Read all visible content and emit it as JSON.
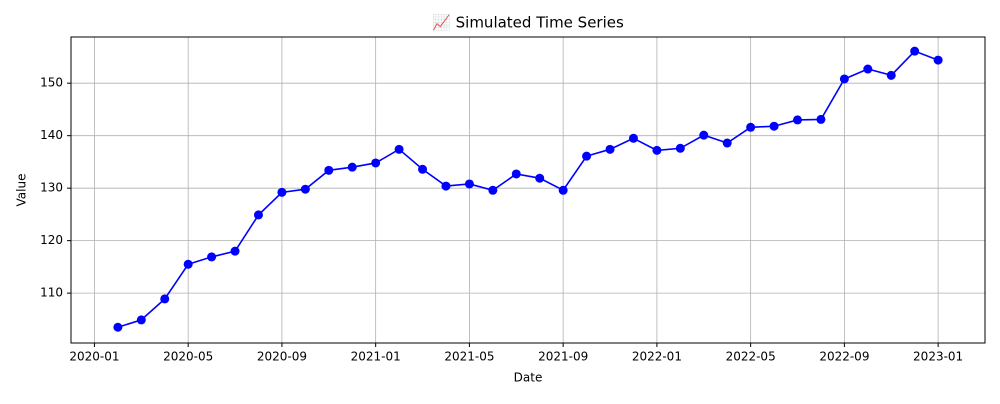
{
  "chart_data": {
    "type": "line",
    "title": "📈 Simulated Time Series",
    "x_label": "Date",
    "y_label": "Value",
    "x": [
      "2020-02",
      "2020-03",
      "2020-04",
      "2020-05",
      "2020-06",
      "2020-07",
      "2020-08",
      "2020-09",
      "2020-10",
      "2020-11",
      "2020-12",
      "2021-01",
      "2021-02",
      "2021-03",
      "2021-04",
      "2021-05",
      "2021-06",
      "2021-07",
      "2021-08",
      "2021-09",
      "2021-10",
      "2021-11",
      "2021-12",
      "2022-01",
      "2022-02",
      "2022-03",
      "2022-04",
      "2022-05",
      "2022-06",
      "2022-07",
      "2022-08",
      "2022-09",
      "2022-10",
      "2022-11",
      "2022-12",
      "2023-01"
    ],
    "series": [
      {
        "name": "Value",
        "color": "#0000ff",
        "values": [
          103.5,
          104.9,
          108.9,
          115.5,
          116.9,
          118.0,
          124.9,
          129.2,
          129.8,
          133.4,
          134.0,
          134.8,
          137.4,
          133.6,
          130.4,
          130.8,
          129.6,
          132.7,
          131.9,
          129.6,
          136.1,
          137.4,
          139.5,
          137.2,
          137.6,
          140.1,
          138.6,
          141.6,
          141.8,
          143.0,
          143.1,
          150.8,
          152.7,
          151.5,
          156.1,
          154.4
        ]
      }
    ],
    "xlim": [
      "2019-12",
      "2023-03"
    ],
    "xticks": [
      "2020-01",
      "2020-05",
      "2020-09",
      "2021-01",
      "2021-05",
      "2021-09",
      "2022-01",
      "2022-05",
      "2022-09",
      "2023-01"
    ],
    "ylim": [
      100.5,
      158.8
    ],
    "yticks": [
      110,
      120,
      130,
      140,
      150
    ],
    "grid": true
  }
}
